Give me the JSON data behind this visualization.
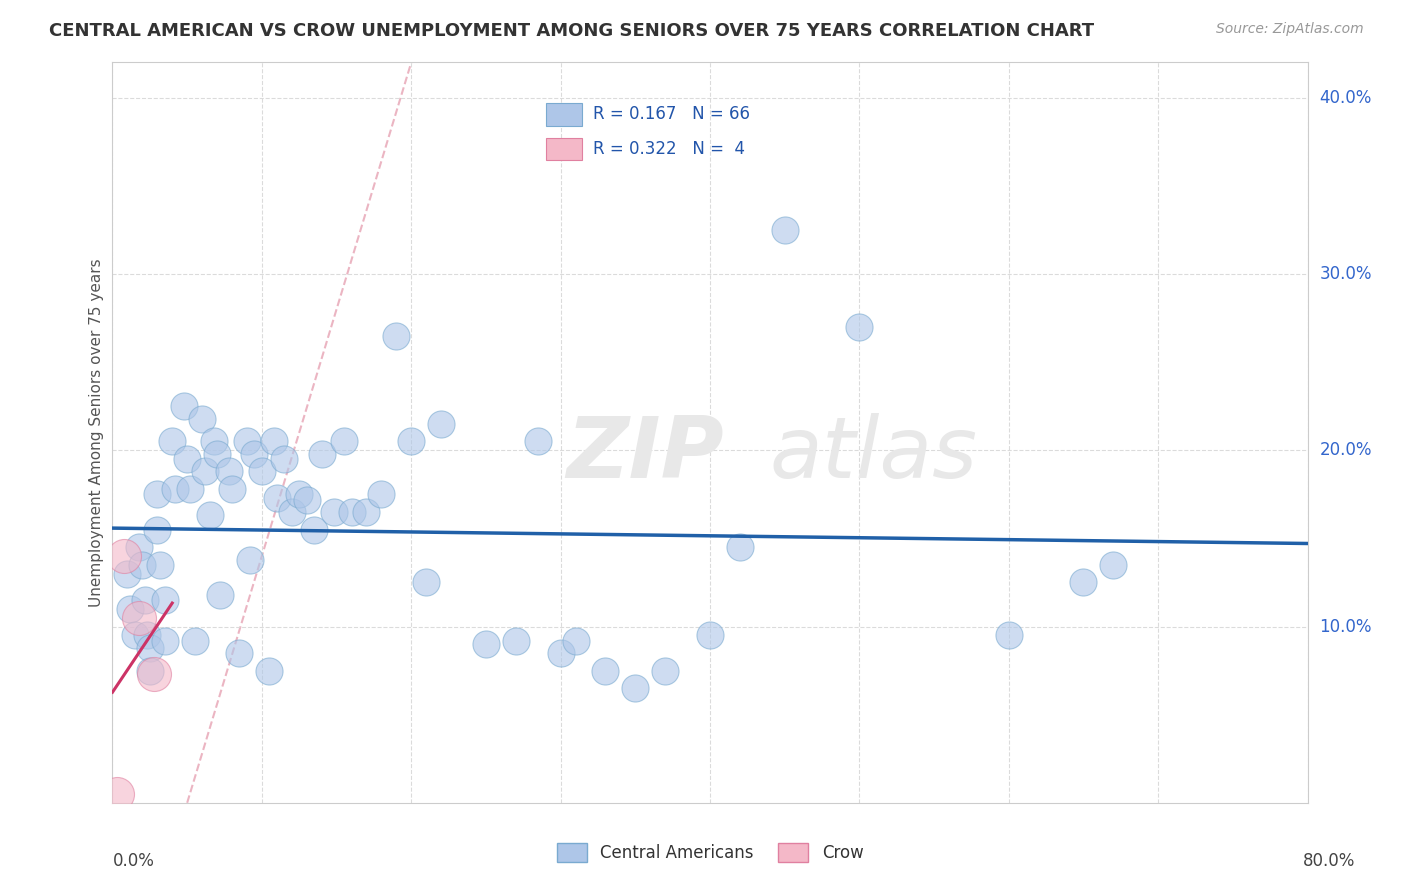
{
  "title": "CENTRAL AMERICAN VS CROW UNEMPLOYMENT AMONG SENIORS OVER 75 YEARS CORRELATION CHART",
  "source": "Source: ZipAtlas.com",
  "ylabel": "Unemployment Among Seniors over 75 years",
  "ytick_vals": [
    0.1,
    0.2,
    0.3,
    0.4
  ],
  "ytick_labels": [
    "10.0%",
    "20.0%",
    "30.0%",
    "40.0%"
  ],
  "xlim": [
    0.0,
    0.8
  ],
  "ylim": [
    0.0,
    0.42
  ],
  "legend_r_blue": "0.167",
  "legend_n_blue": "66",
  "legend_r_pink": "0.322",
  "legend_n_pink": "4",
  "blue_color": "#aec6e8",
  "blue_edge_color": "#7aaad0",
  "pink_color": "#f4b8c8",
  "pink_edge_color": "#e080a0",
  "trendline_blue": "#2060a8",
  "trendline_pink": "#cc3366",
  "diag_color": "#e8a0b0",
  "blue_points_x": [
    0.01,
    0.012,
    0.015,
    0.018,
    0.02,
    0.022,
    0.023,
    0.025,
    0.025,
    0.03,
    0.03,
    0.032,
    0.035,
    0.035,
    0.04,
    0.042,
    0.048,
    0.05,
    0.052,
    0.055,
    0.06,
    0.062,
    0.065,
    0.068,
    0.07,
    0.072,
    0.078,
    0.08,
    0.085,
    0.09,
    0.092,
    0.095,
    0.1,
    0.105,
    0.108,
    0.11,
    0.115,
    0.12,
    0.125,
    0.13,
    0.135,
    0.14,
    0.148,
    0.155,
    0.16,
    0.17,
    0.18,
    0.19,
    0.2,
    0.21,
    0.22,
    0.25,
    0.27,
    0.285,
    0.3,
    0.31,
    0.33,
    0.35,
    0.37,
    0.4,
    0.42,
    0.45,
    0.5,
    0.6,
    0.65,
    0.67
  ],
  "blue_points_y": [
    0.13,
    0.11,
    0.095,
    0.145,
    0.135,
    0.115,
    0.095,
    0.088,
    0.075,
    0.175,
    0.155,
    0.135,
    0.115,
    0.092,
    0.205,
    0.178,
    0.225,
    0.195,
    0.178,
    0.092,
    0.218,
    0.188,
    0.163,
    0.205,
    0.198,
    0.118,
    0.188,
    0.178,
    0.085,
    0.205,
    0.138,
    0.198,
    0.188,
    0.075,
    0.205,
    0.173,
    0.195,
    0.165,
    0.175,
    0.172,
    0.155,
    0.198,
    0.165,
    0.205,
    0.165,
    0.165,
    0.175,
    0.265,
    0.205,
    0.125,
    0.215,
    0.09,
    0.092,
    0.205,
    0.085,
    0.092,
    0.075,
    0.065,
    0.075,
    0.095,
    0.145,
    0.325,
    0.27,
    0.095,
    0.125,
    0.135
  ],
  "pink_points_x": [
    0.003,
    0.008,
    0.018,
    0.028
  ],
  "pink_points_y": [
    0.005,
    0.14,
    0.105,
    0.073
  ]
}
